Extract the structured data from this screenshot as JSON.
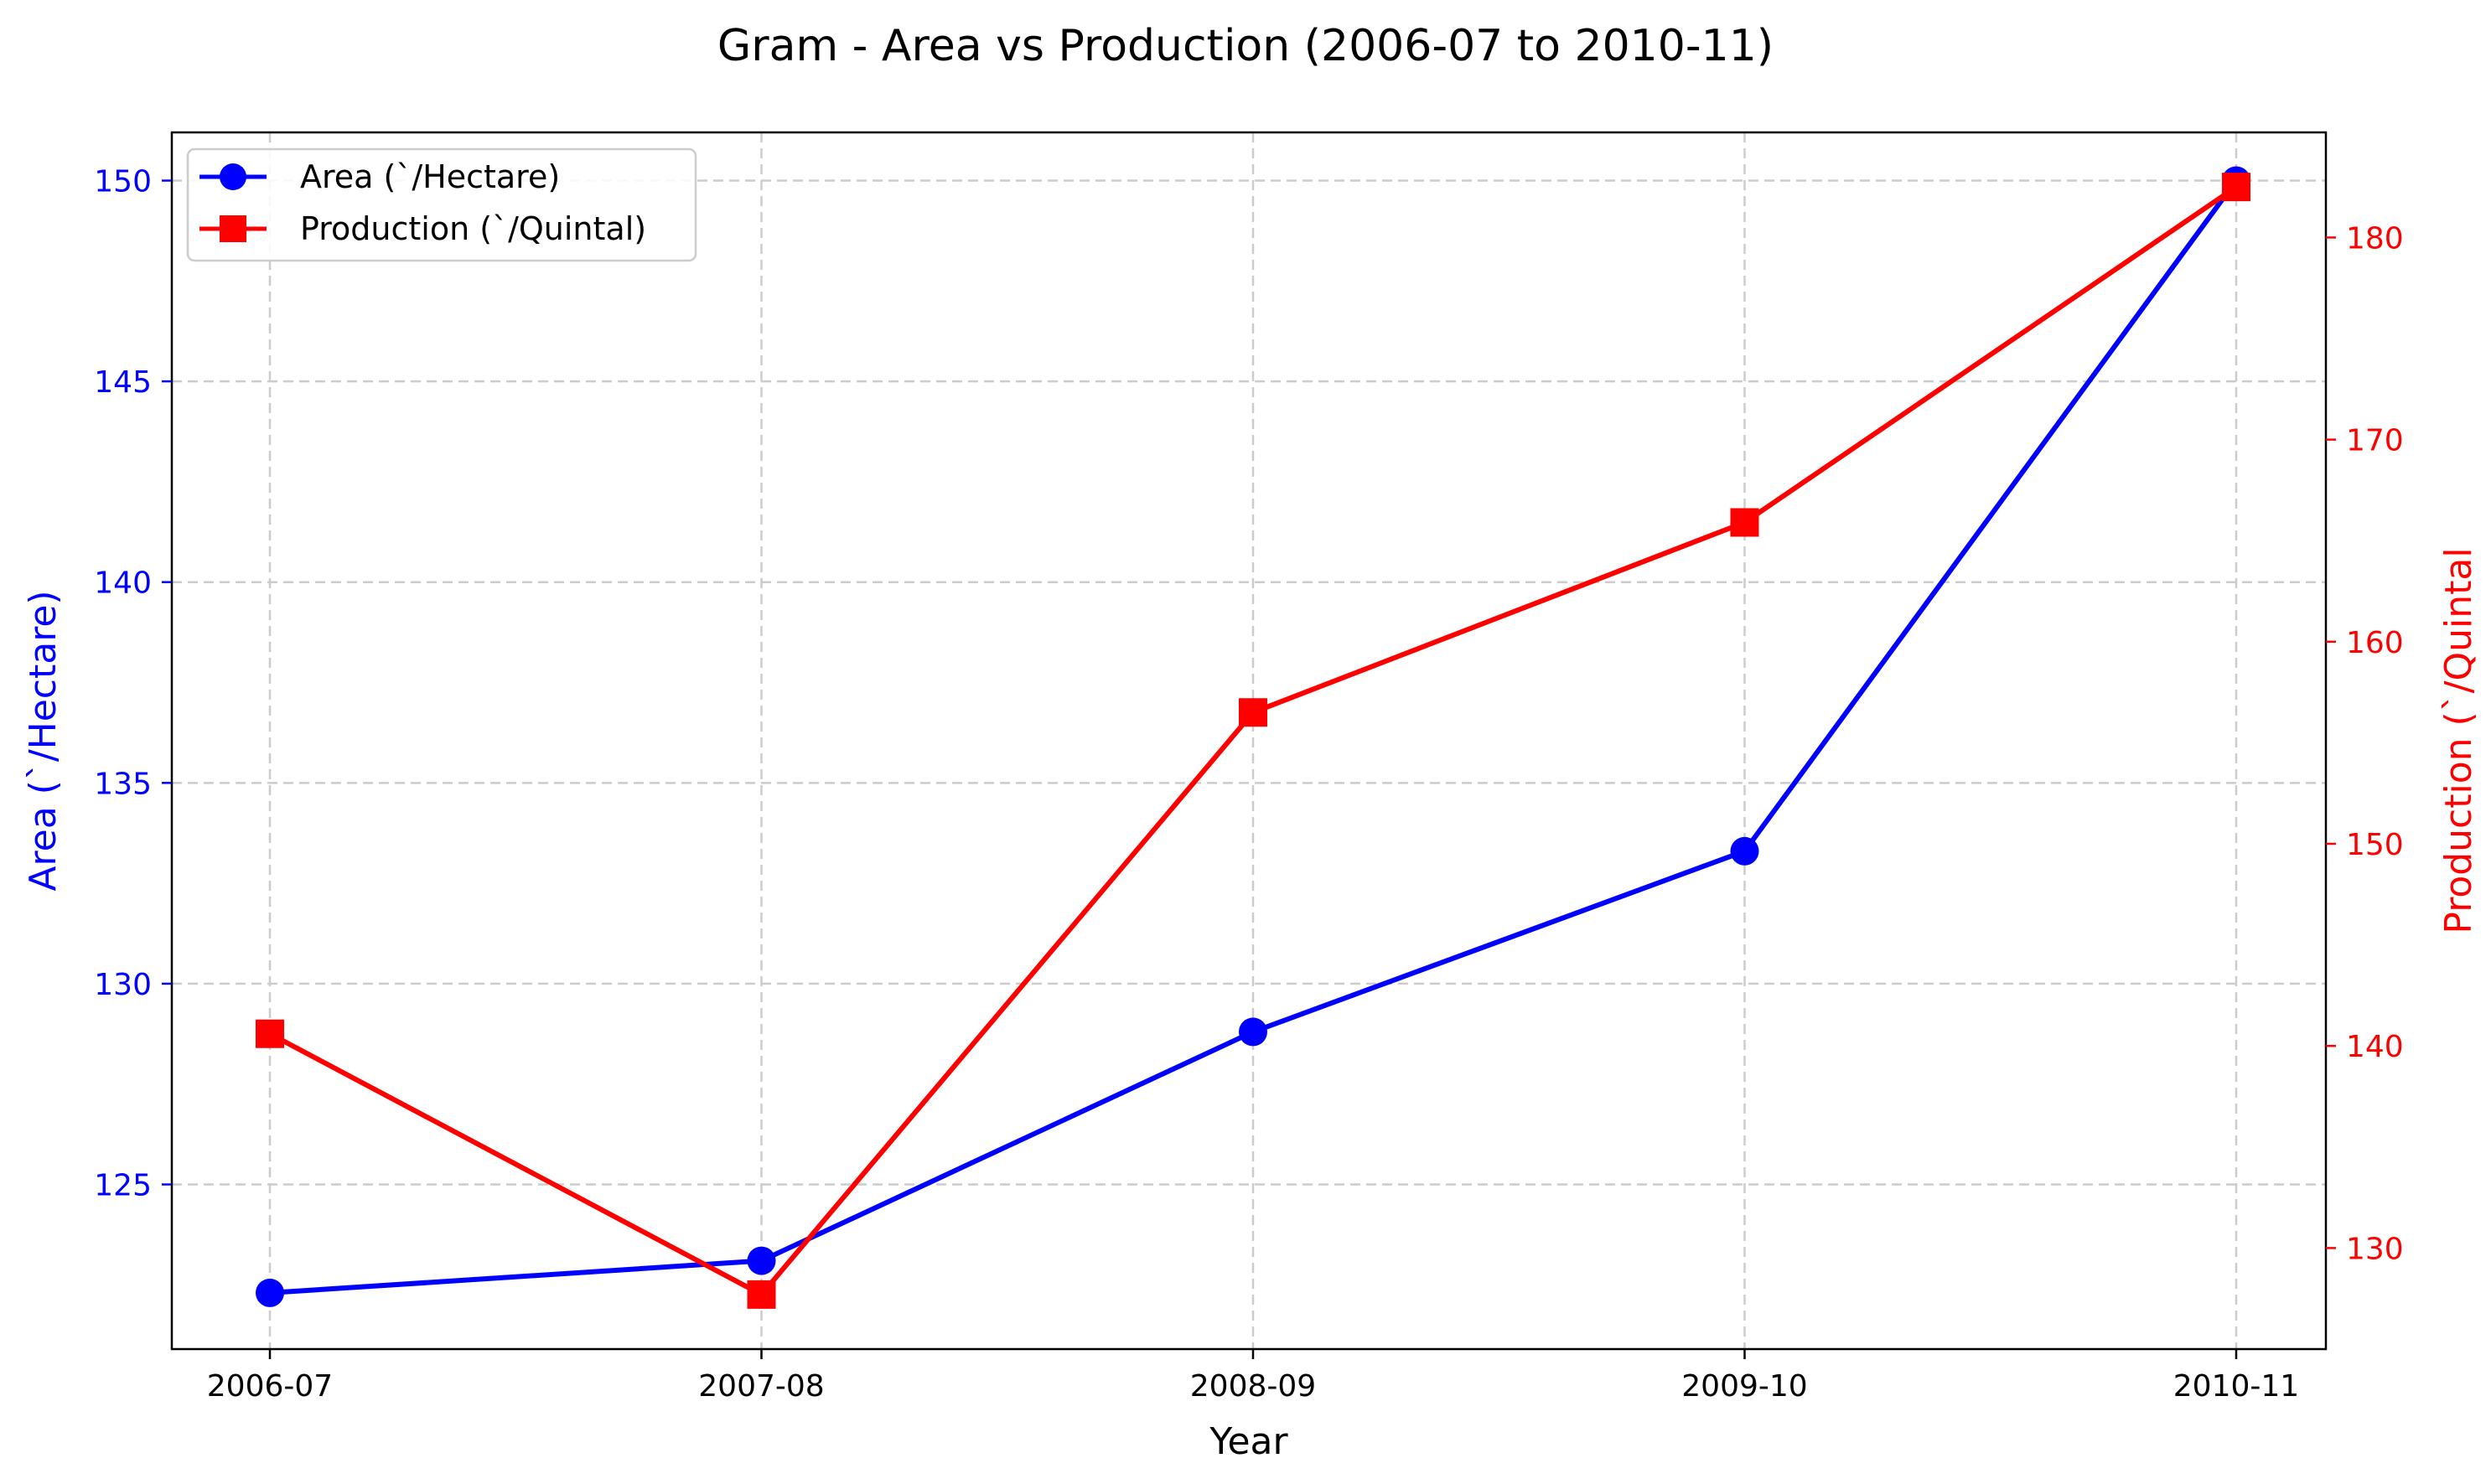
{
  "chart_data": {
    "type": "line",
    "title": "Gram - Area vs Production (2006-07 to 2010-11)",
    "xlabel": "Year",
    "ylabel_left": "Area (`/Hectare)",
    "ylabel_right": "Production (`/Quintal",
    "categories": [
      "2006-07",
      "2007-08",
      "2008-09",
      "2009-10",
      "2010-11"
    ],
    "y_left_ticks": [
      125,
      130,
      135,
      140,
      145,
      150
    ],
    "y_right_ticks": [
      130,
      140,
      150,
      160,
      170,
      180
    ],
    "y_left_lim": [
      120.9,
      151.2
    ],
    "y_right_lim": [
      125.0,
      185.2
    ],
    "grid": true,
    "legend_position": "top-left",
    "series": [
      {
        "name": "Area (`/Hectare)",
        "axis": "left",
        "marker": "circle",
        "color": "#0000ff",
        "values": [
          122.3,
          123.1,
          128.8,
          133.3,
          150.0
        ]
      },
      {
        "name": "Production (`/Quintal)",
        "axis": "right",
        "marker": "square",
        "color": "#ff0000",
        "values": [
          140.6,
          127.7,
          156.5,
          165.9,
          182.5
        ]
      }
    ],
    "colors": {
      "left_axis": "#0000ff",
      "right_axis": "#ff0000",
      "grid": "#cccccc",
      "frame": "#000000"
    }
  }
}
